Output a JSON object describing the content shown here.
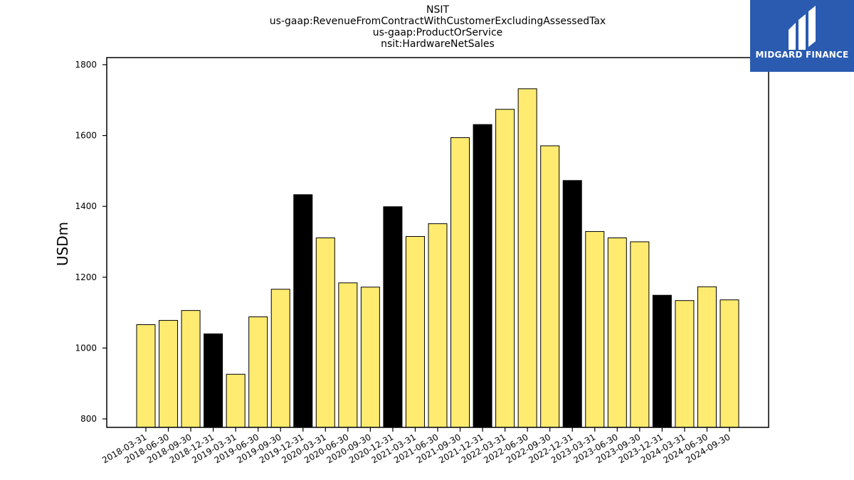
{
  "title_lines": [
    "NSIT",
    "us-gaap:RevenueFromContractWithCustomerExcludingAssessedTax",
    "us-gaap:ProductOrService",
    "nsit:HardwareNetSales"
  ],
  "logo": {
    "text": "MIDGARD FINANCE",
    "background": "#2a5bb0"
  },
  "chart_data": {
    "type": "bar",
    "ylabel": "USDm",
    "xlabel": "",
    "ylim": [
      776,
      1820
    ],
    "yticks": [
      800,
      1000,
      1200,
      1400,
      1600,
      1800
    ],
    "grid": false,
    "colors": {
      "default": "#ffeb70",
      "year_end": "#000000",
      "edge": "#000000"
    },
    "categories": [
      "2018-03-31",
      "2018-06-30",
      "2018-09-30",
      "2018-12-31",
      "2019-03-31",
      "2019-06-30",
      "2019-09-30",
      "2019-12-31",
      "2020-03-31",
      "2020-06-30",
      "2020-09-30",
      "2020-12-31",
      "2021-03-31",
      "2021-06-30",
      "2021-09-30",
      "2021-12-31",
      "2022-03-31",
      "2022-06-30",
      "2022-09-30",
      "2022-12-31",
      "2023-03-31",
      "2023-06-30",
      "2023-09-30",
      "2023-12-31",
      "2024-03-31",
      "2024-06-30",
      "2024-09-30"
    ],
    "values": [
      1066,
      1078,
      1106,
      1040,
      926,
      1088,
      1166,
      1433,
      1311,
      1184,
      1172,
      1399,
      1315,
      1351,
      1594,
      1631,
      1674,
      1732,
      1571,
      1473,
      1329,
      1311,
      1300,
      1149,
      1134,
      1173,
      1136
    ],
    "highlight": [
      false,
      false,
      false,
      true,
      false,
      false,
      false,
      true,
      false,
      false,
      false,
      true,
      false,
      false,
      false,
      true,
      false,
      false,
      false,
      true,
      false,
      false,
      false,
      true,
      false,
      false,
      false
    ]
  }
}
